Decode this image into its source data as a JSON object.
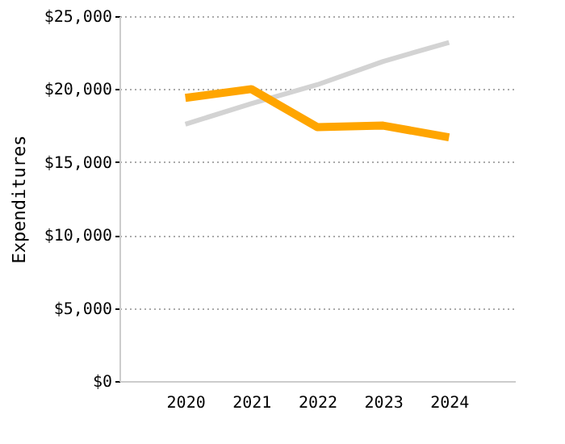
{
  "chart_data": {
    "type": "line",
    "ylabel": "Expenditures",
    "categories": [
      "2020",
      "2021",
      "2022",
      "2023",
      "2024"
    ],
    "series": [
      {
        "color": "#d3d3d3",
        "values": [
          17600,
          19000,
          20300,
          21900,
          23200
        ]
      },
      {
        "color": "#ffa500",
        "values": [
          19400,
          20000,
          17400,
          17500,
          16700
        ]
      }
    ],
    "ylim": [
      0,
      25000
    ],
    "yticks": [
      {
        "value": 0,
        "label": "$0"
      },
      {
        "value": 5000,
        "label": "$5,000"
      },
      {
        "value": 10000,
        "label": "$10,000"
      },
      {
        "value": 15000,
        "label": "$15,000"
      },
      {
        "value": 20000,
        "label": "$20,000"
      },
      {
        "value": 25000,
        "label": "$25,000"
      }
    ],
    "grid": "y",
    "marker": "none",
    "line_style": "solid"
  }
}
